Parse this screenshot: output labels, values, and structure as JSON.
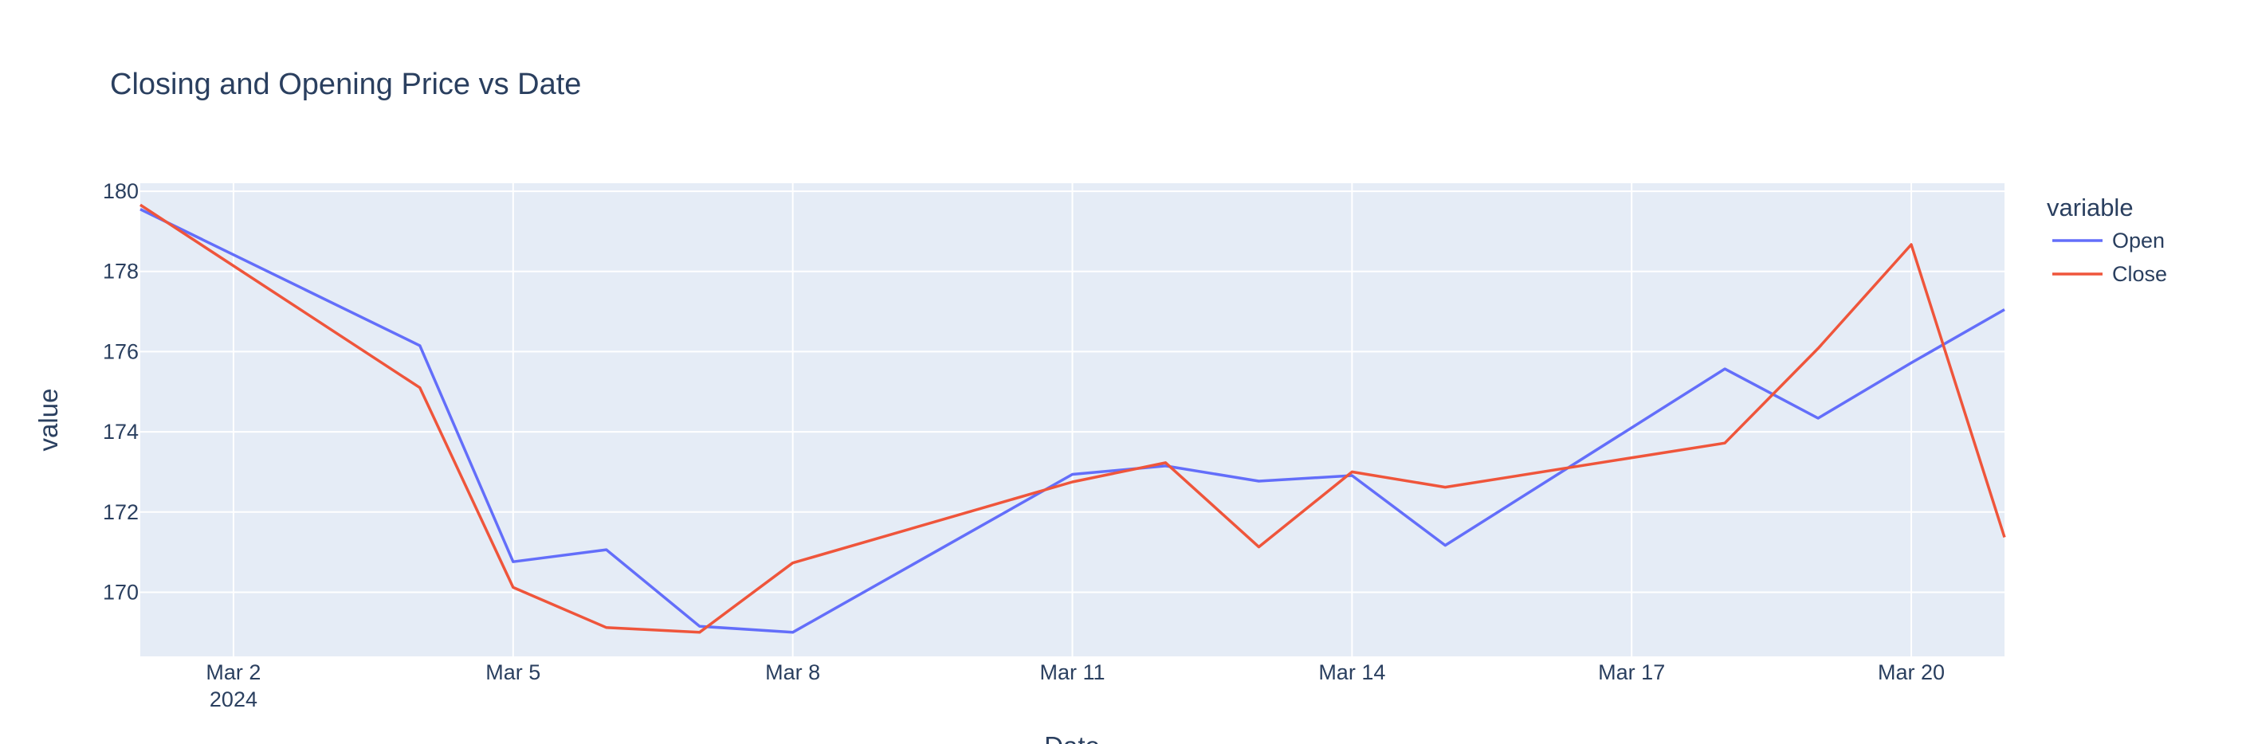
{
  "chart_data": {
    "type": "line",
    "title": "Closing and Opening Price vs Date",
    "xlabel": "Date",
    "ylabel": "value",
    "legend_title": "variable",
    "legend_position": "top-right",
    "grid": true,
    "x": [
      "2024-03-01",
      "2024-03-04",
      "2024-03-05",
      "2024-03-06",
      "2024-03-07",
      "2024-03-08",
      "2024-03-11",
      "2024-03-12",
      "2024-03-13",
      "2024-03-14",
      "2024-03-15",
      "2024-03-18",
      "2024-03-19",
      "2024-03-20",
      "2024-03-21"
    ],
    "xtick_labels": [
      {
        "date": "2024-03-02",
        "label": "Mar 2",
        "sub": "2024"
      },
      {
        "date": "2024-03-05",
        "label": "Mar 5",
        "sub": ""
      },
      {
        "date": "2024-03-08",
        "label": "Mar 8",
        "sub": ""
      },
      {
        "date": "2024-03-11",
        "label": "Mar 11",
        "sub": ""
      },
      {
        "date": "2024-03-14",
        "label": "Mar 14",
        "sub": ""
      },
      {
        "date": "2024-03-17",
        "label": "Mar 17",
        "sub": ""
      },
      {
        "date": "2024-03-20",
        "label": "Mar 20",
        "sub": ""
      }
    ],
    "ylim": [
      168.4,
      180.2
    ],
    "yticks": [
      170,
      172,
      174,
      176,
      178,
      180
    ],
    "series": [
      {
        "name": "Open",
        "color": "#636efa",
        "values": [
          179.55,
          176.15,
          170.76,
          171.06,
          169.15,
          169.0,
          172.94,
          173.15,
          172.77,
          172.91,
          171.17,
          175.57,
          174.34,
          175.72,
          177.05
        ]
      },
      {
        "name": "Close",
        "color": "#ef553b",
        "values": [
          179.66,
          175.1,
          170.12,
          169.12,
          169.0,
          170.73,
          172.75,
          173.23,
          171.13,
          173.0,
          172.62,
          173.72,
          176.08,
          178.67,
          171.37
        ]
      }
    ]
  }
}
